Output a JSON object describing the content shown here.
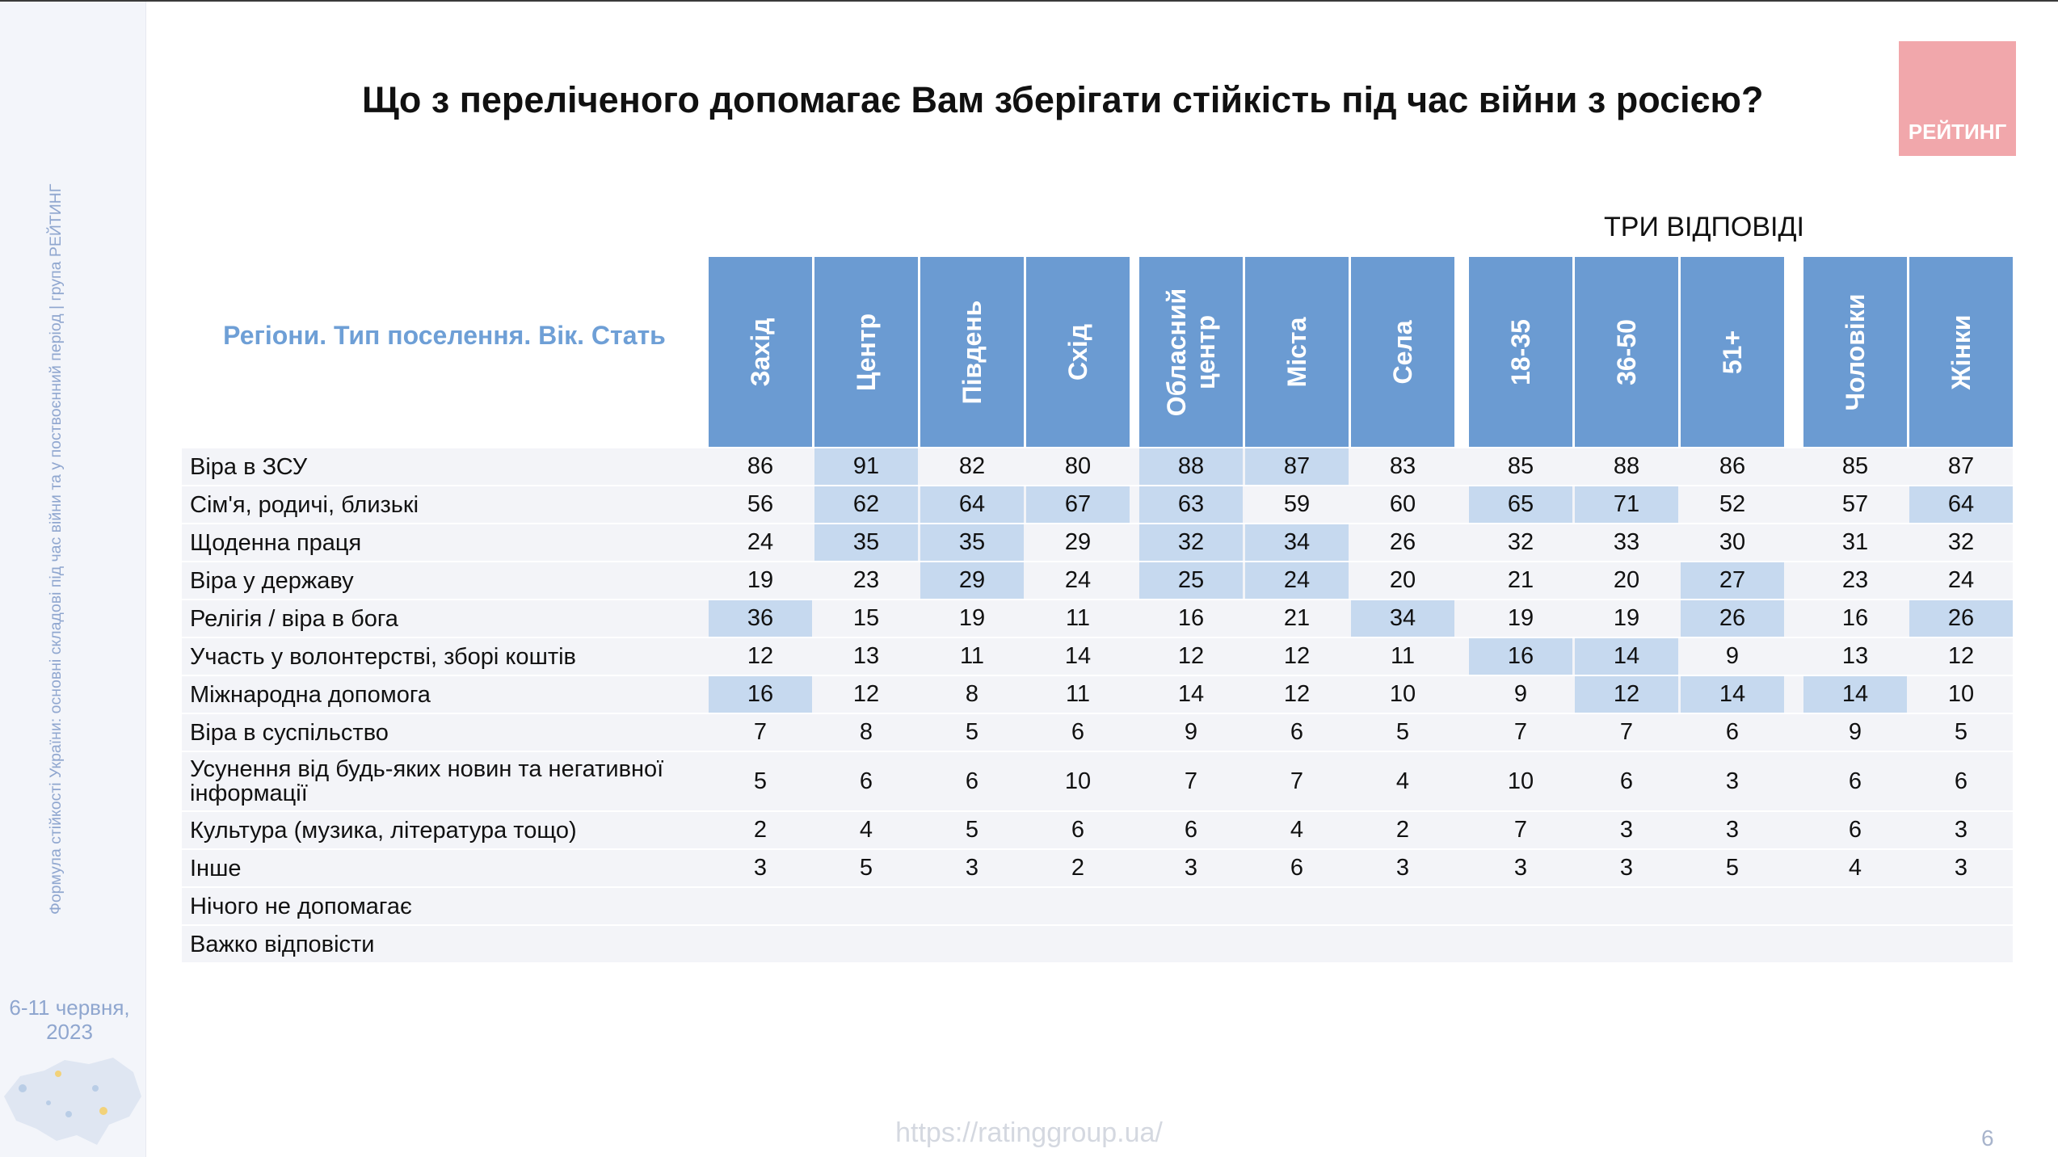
{
  "title": "Що з переліченого допомагає Вам зберігати стійкість під час війни з росією?",
  "logo_text": "РЕЙТИНГ",
  "note": "ТРИ ВІДПОВІДІ",
  "header_label": "Регіони. Тип поселення. Вік. Стать",
  "sidebar": {
    "caption": "Формула стійкості України: основні складові під час війни та у поствоєнний період | група РЕЙТИНГ",
    "date": "6-11 червня, 2023"
  },
  "footer": {
    "url": "https://ratinggroup.ua/",
    "page": "6"
  },
  "colors": {
    "header_blue": "#6b9bd2",
    "highlight": "#c6d9ef",
    "label_blue": "#6e9fd6",
    "logo": "#f1a7ab"
  },
  "table": {
    "columns": [
      "Захід",
      "Центр",
      "Південь",
      "Схід",
      "Обласний центр",
      "Міста",
      "Села",
      "18-35",
      "36-50",
      "51+",
      "Чоловіки",
      "Жінки"
    ],
    "rows": [
      {
        "label": "Віра в ЗСУ",
        "values": [
          "86",
          "91",
          "82",
          "80",
          "88",
          "87",
          "83",
          "85",
          "88",
          "86",
          "85",
          "87"
        ],
        "highlight": [
          1,
          4,
          5
        ]
      },
      {
        "label": "Сім'я, родичі, близькі",
        "values": [
          "56",
          "62",
          "64",
          "67",
          "63",
          "59",
          "60",
          "65",
          "71",
          "52",
          "57",
          "64"
        ],
        "highlight": [
          1,
          2,
          3,
          4,
          7,
          8,
          11
        ]
      },
      {
        "label": "Щоденна праця",
        "values": [
          "24",
          "35",
          "35",
          "29",
          "32",
          "34",
          "26",
          "32",
          "33",
          "30",
          "31",
          "32"
        ],
        "highlight": [
          1,
          2,
          4,
          5
        ]
      },
      {
        "label": "Віра у державу",
        "values": [
          "19",
          "23",
          "29",
          "24",
          "25",
          "24",
          "20",
          "21",
          "20",
          "27",
          "23",
          "24"
        ],
        "highlight": [
          2,
          4,
          5,
          9
        ]
      },
      {
        "label": "Релігія / віра в бога",
        "values": [
          "36",
          "15",
          "19",
          "11",
          "16",
          "21",
          "34",
          "19",
          "19",
          "26",
          "16",
          "26"
        ],
        "highlight": [
          0,
          6,
          9,
          11
        ]
      },
      {
        "label": "Участь у волонтерстві, зборі коштів",
        "values": [
          "12",
          "13",
          "11",
          "14",
          "12",
          "12",
          "11",
          "16",
          "14",
          "9",
          "13",
          "12"
        ],
        "highlight": [
          7,
          8
        ]
      },
      {
        "label": "Міжнародна допомога",
        "values": [
          "16",
          "12",
          "8",
          "11",
          "14",
          "12",
          "10",
          "9",
          "12",
          "14",
          "14",
          "10"
        ],
        "highlight": [
          0,
          8,
          9,
          10
        ]
      },
      {
        "label": "Віра в суспільство",
        "values": [
          "7",
          "8",
          "5",
          "6",
          "9",
          "6",
          "5",
          "7",
          "7",
          "6",
          "9",
          "5"
        ],
        "highlight": []
      },
      {
        "label": "Усунення від будь-яких новин та негативної інформації",
        "values": [
          "5",
          "6",
          "6",
          "10",
          "7",
          "7",
          "4",
          "10",
          "6",
          "3",
          "6",
          "6"
        ],
        "highlight": []
      },
      {
        "label": "Культура (музика, література тощо)",
        "values": [
          "2",
          "4",
          "5",
          "6",
          "6",
          "4",
          "2",
          "7",
          "3",
          "3",
          "6",
          "3"
        ],
        "highlight": []
      },
      {
        "label": "Інше",
        "values": [
          "3",
          "5",
          "3",
          "2",
          "3",
          "6",
          "3",
          "3",
          "3",
          "5",
          "4",
          "3"
        ],
        "highlight": []
      },
      {
        "label": "Нічого не допомагає",
        "values": [
          "",
          "",
          "",
          "",
          "",
          "",
          "",
          "",
          "",
          "",
          "",
          ""
        ],
        "highlight": []
      },
      {
        "label": "Важко відповісти",
        "values": [
          "",
          "",
          "",
          "",
          "",
          "",
          "",
          "",
          "",
          "",
          "",
          ""
        ],
        "highlight": []
      }
    ]
  }
}
